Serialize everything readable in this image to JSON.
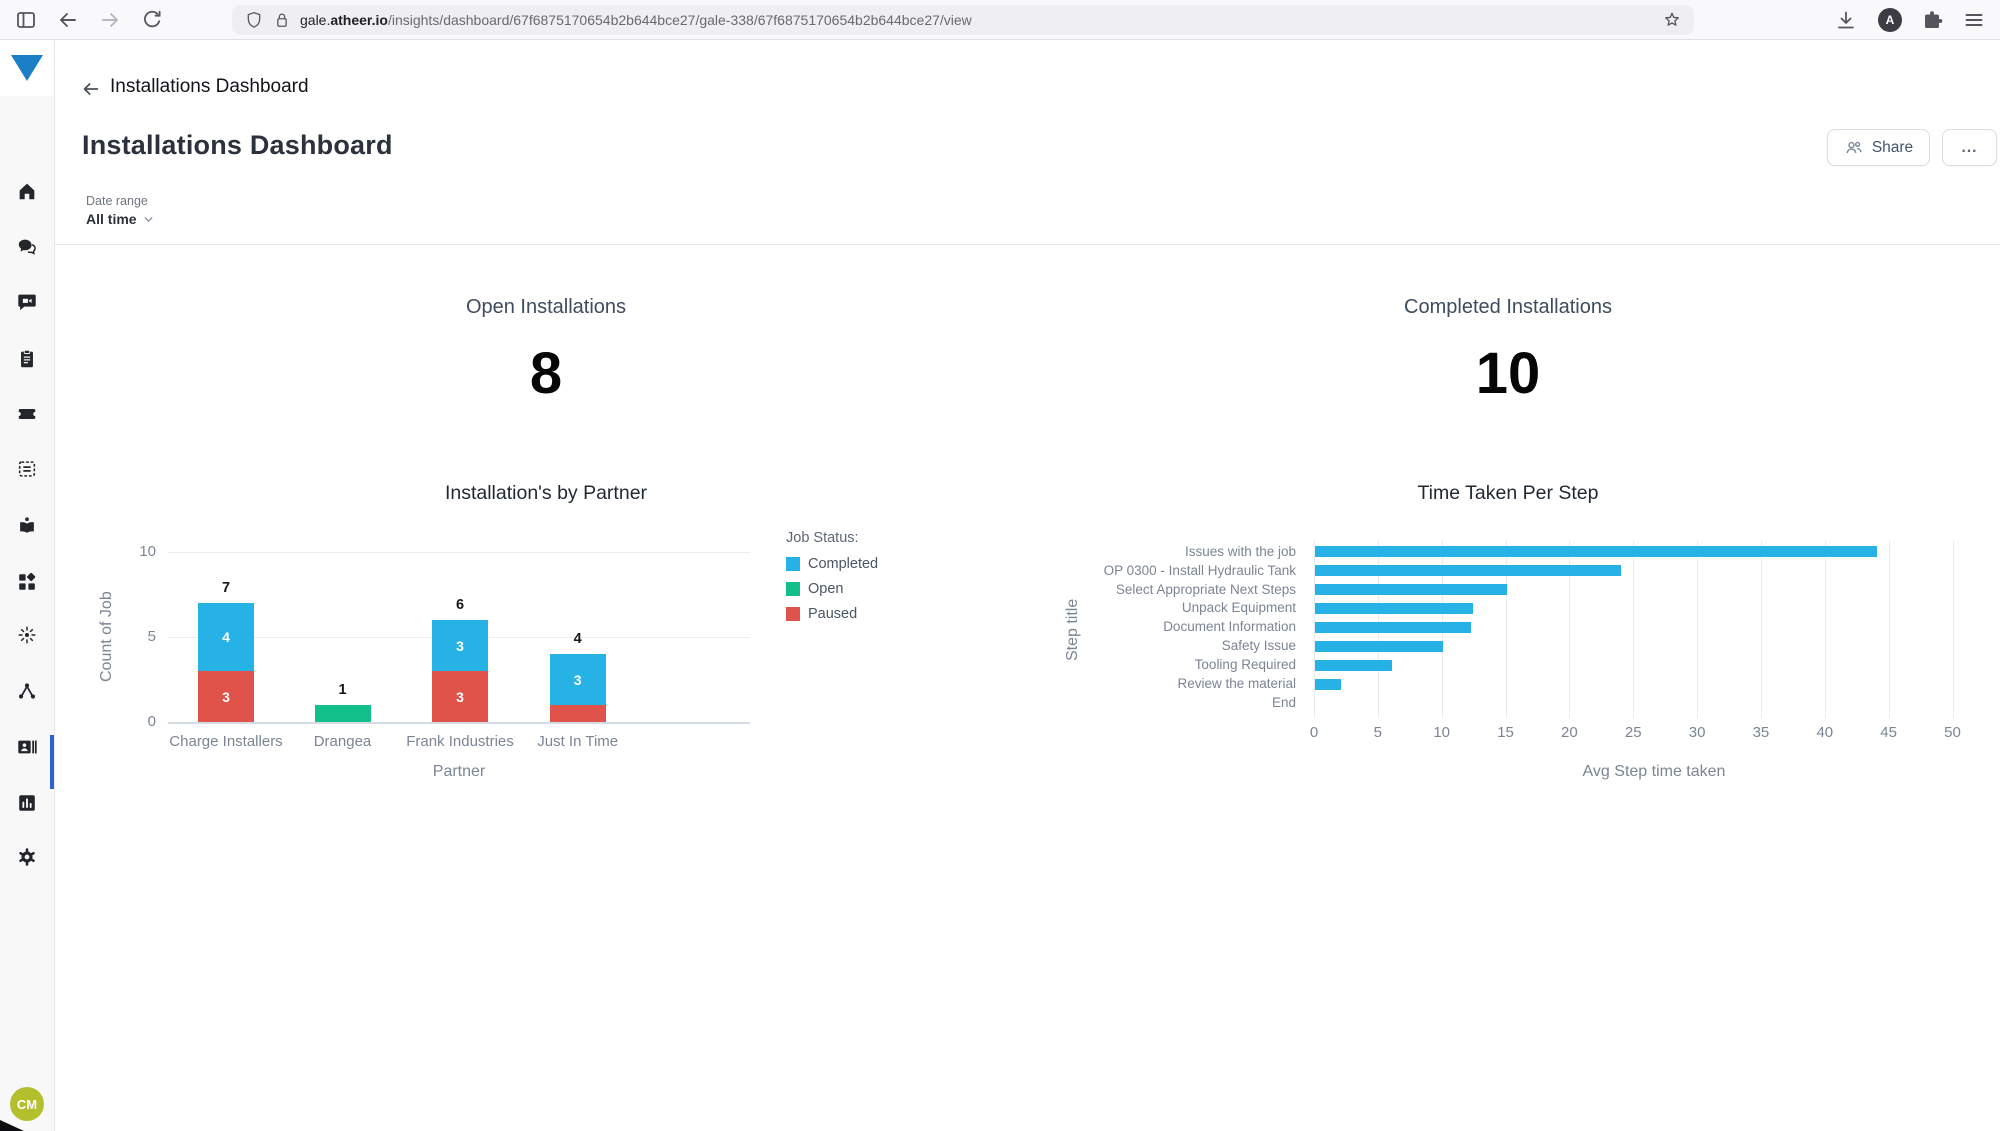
{
  "browser": {
    "url_prefix": "gale.",
    "url_domain_bold": "atheer.io",
    "url_path": "/insights/dashboard/67f6875170654b2b644bce27/gale-338/67f6875170654b2b644bce27/view",
    "account_initial": "A"
  },
  "sidebar": {
    "logo": "atheer-triangle-logo",
    "items": [
      "home",
      "chat",
      "video-message",
      "tasks-clipboard",
      "ticket",
      "forms-module",
      "learning-book",
      "apps-blocks",
      "ai-sparkle",
      "workflow",
      "team-contacts",
      "insights-chart",
      "settings-gear"
    ],
    "active_item": "insights-chart",
    "avatar_initials": "CM"
  },
  "topbar": {
    "title": "Installations Dashboard"
  },
  "header": {
    "title": "Installations Dashboard",
    "share_label": "Share",
    "more_label": "..."
  },
  "filters": {
    "label": "Date range",
    "value": "All time"
  },
  "metrics": [
    {
      "title": "Open Installations",
      "value": "8"
    },
    {
      "title": "Completed Installations",
      "value": "10"
    }
  ],
  "chart_data": [
    {
      "type": "bar",
      "stacked": true,
      "title": "Installation's by Partner",
      "xlabel": "Partner",
      "ylabel": "Count of Job",
      "categories": [
        "Charge Installers",
        "Drangea",
        "Frank Industries",
        "Just In Time"
      ],
      "series": [
        {
          "name": "Completed",
          "color": "#27b2e5",
          "values": [
            4,
            0,
            3,
            3
          ]
        },
        {
          "name": "Open",
          "color": "#13bf8b",
          "values": [
            0,
            1,
            0,
            0
          ]
        },
        {
          "name": "Paused",
          "color": "#e0534a",
          "values": [
            3,
            0,
            3,
            1
          ]
        }
      ],
      "totals": [
        7,
        1,
        6,
        4
      ],
      "ylim": [
        0,
        10
      ],
      "yticks": [
        0,
        5,
        10
      ],
      "grid": true,
      "legend_title": "Job Status:",
      "legend_position": "right"
    },
    {
      "type": "bar-horizontal",
      "title": "Time Taken Per Step",
      "xlabel": "Avg Step time taken",
      "ylabel": "Step title",
      "categories": [
        "Issues with the job",
        "OP 0300 - Install Hydraulic Tank",
        "Select Appropriate Next Steps",
        "Unpack Equipment",
        "Document Information",
        "Safety Issue",
        "Tooling Required",
        "Review the material",
        "End"
      ],
      "values": [
        44,
        24,
        15,
        12.4,
        12.2,
        10,
        6,
        2,
        0
      ],
      "bar_color": "#27b2e5",
      "xlim": [
        0,
        50
      ],
      "xticks": [
        0,
        5,
        10,
        15,
        20,
        25,
        30,
        35,
        40,
        45,
        50
      ],
      "grid": true
    }
  ],
  "colors": {
    "accent_blue": "#1b7fc7",
    "active_indicator": "#2d63d8",
    "completed": "#27b2e5",
    "open": "#13bf8b",
    "paused": "#e0534a",
    "avatar": "#b3bf2d"
  }
}
